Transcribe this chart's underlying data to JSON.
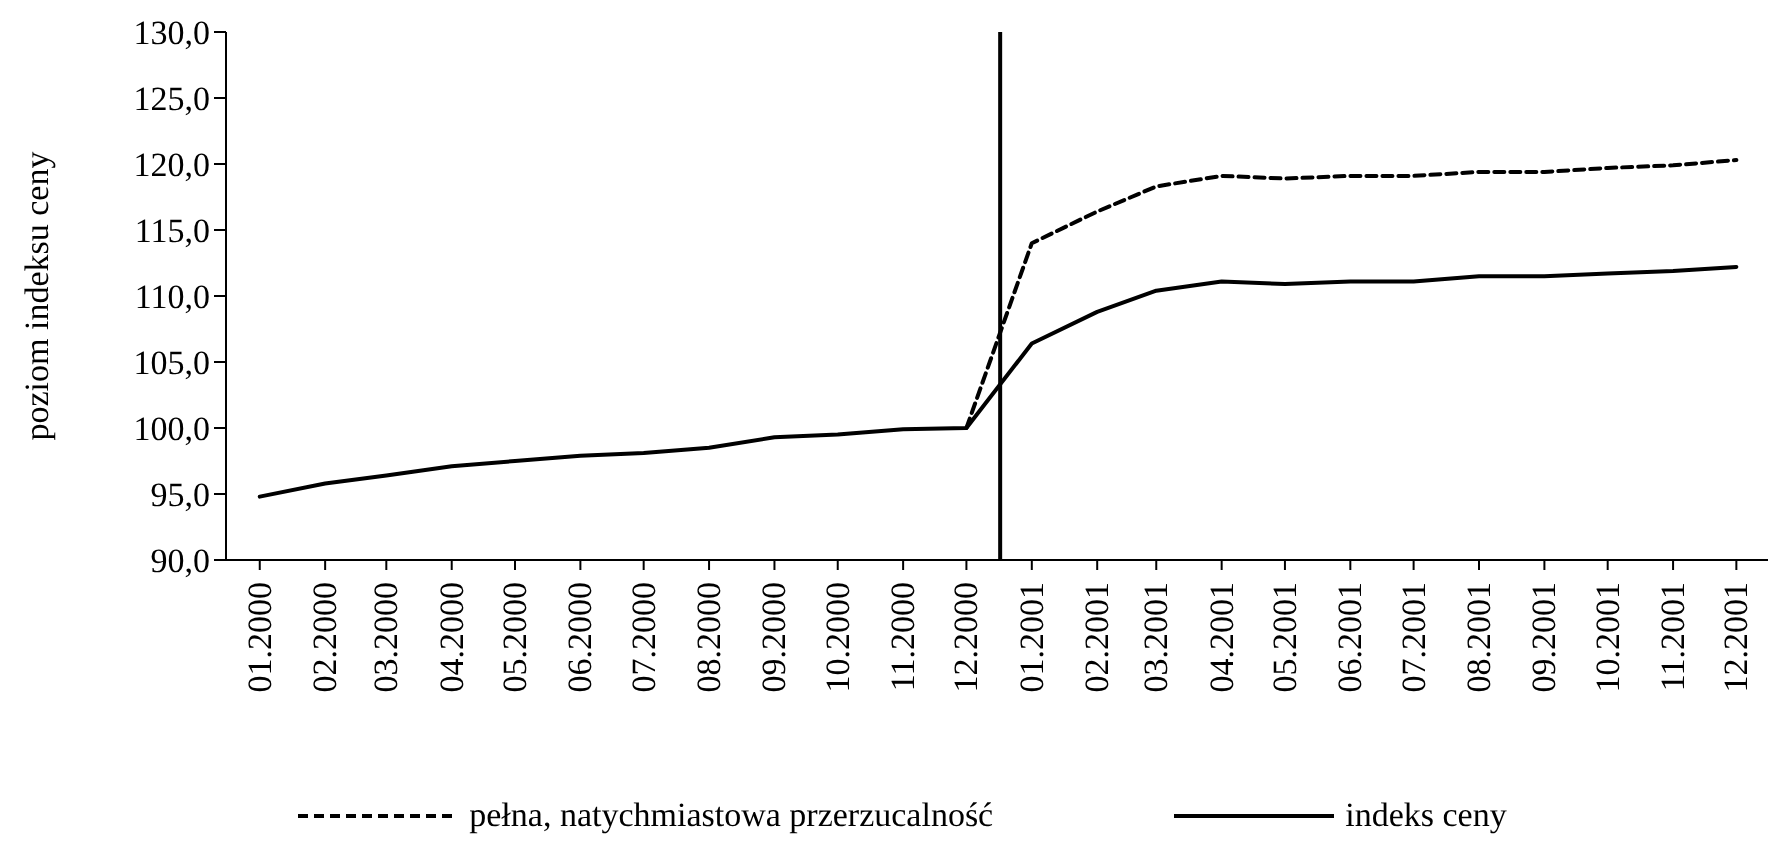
{
  "chart_data": {
    "type": "line",
    "ylabel": "poziom indeksu ceny",
    "x": [
      "2000-01",
      "2000-02",
      "2000-03",
      "2000-04",
      "2000-05",
      "2000-06",
      "2000-07",
      "2000-08",
      "2000-09",
      "2000-10",
      "2000-11",
      "2000-12",
      "2001-01",
      "2001-02",
      "2001-03",
      "2001-04",
      "2001-05",
      "2001-06",
      "2001-07",
      "2001-08",
      "2001-09",
      "2001-10",
      "2001-11",
      "2001-12"
    ],
    "series": [
      {
        "name": "pełna, natychmiastowa przerzucalność",
        "color": "#000000",
        "line_style": "dashed",
        "values": [
          null,
          null,
          null,
          null,
          null,
          null,
          null,
          null,
          null,
          null,
          null,
          100.0,
          114.0,
          116.4,
          118.3,
          119.1,
          118.9,
          119.1,
          119.1,
          119.4,
          119.4,
          119.7,
          119.9,
          120.3
        ]
      },
      {
        "name": "indeks ceny",
        "color": "#000000",
        "line_style": "solid",
        "values": [
          94.8,
          95.8,
          96.4,
          97.1,
          97.5,
          97.9,
          98.1,
          98.5,
          99.3,
          99.5,
          99.9,
          100.0,
          106.4,
          108.8,
          110.4,
          111.1,
          110.9,
          111.1,
          111.1,
          111.5,
          111.5,
          111.7,
          111.9,
          112.2
        ]
      }
    ],
    "xlim": [
      "1999-12-16",
      "2001-12-16"
    ],
    "xticks": [
      {
        "value": "2000-01",
        "label": "01.2000"
      },
      {
        "value": "2000-02",
        "label": "02.2000"
      },
      {
        "value": "2000-03",
        "label": "03.2000"
      },
      {
        "value": "2000-04",
        "label": "04.2000"
      },
      {
        "value": "2000-05",
        "label": "05.2000"
      },
      {
        "value": "2000-06",
        "label": "06.2000"
      },
      {
        "value": "2000-07",
        "label": "07.2000"
      },
      {
        "value": "2000-08",
        "label": "08.2000"
      },
      {
        "value": "2000-09",
        "label": "09.2000"
      },
      {
        "value": "2000-10",
        "label": "10.2000"
      },
      {
        "value": "2000-11",
        "label": "11.2000"
      },
      {
        "value": "2000-12",
        "label": "12.2000"
      },
      {
        "value": "2001-01",
        "label": "01.2001"
      },
      {
        "value": "2001-02",
        "label": "02.2001"
      },
      {
        "value": "2001-03",
        "label": "03.2001"
      },
      {
        "value": "2001-04",
        "label": "04.2001"
      },
      {
        "value": "2001-05",
        "label": "05.2001"
      },
      {
        "value": "2001-06",
        "label": "06.2001"
      },
      {
        "value": "2001-07",
        "label": "07.2001"
      },
      {
        "value": "2001-08",
        "label": "08.2001"
      },
      {
        "value": "2001-09",
        "label": "09.2001"
      },
      {
        "value": "2001-10",
        "label": "10.2001"
      },
      {
        "value": "2001-11",
        "label": "11.2001"
      },
      {
        "value": "2001-12",
        "label": "12.2001"
      }
    ],
    "ylim": [
      90,
      130
    ],
    "yticks": [
      {
        "value": 90,
        "label": "90,0"
      },
      {
        "value": 95,
        "label": "95,0"
      },
      {
        "value": 100,
        "label": "100,0"
      },
      {
        "value": 105,
        "label": "105,0"
      },
      {
        "value": 110,
        "label": "110,0"
      },
      {
        "value": 115,
        "label": "115,0"
      },
      {
        "value": 120,
        "label": "120,0"
      },
      {
        "value": 125,
        "label": "125,0"
      },
      {
        "value": 130,
        "label": "130,0"
      }
    ],
    "ref_lines": [
      {
        "axis": "x",
        "value": "2000-12-17",
        "color": "#000000",
        "line_style": "solid"
      }
    ],
    "grid": false,
    "legend": "bottom",
    "marker": "none"
  }
}
